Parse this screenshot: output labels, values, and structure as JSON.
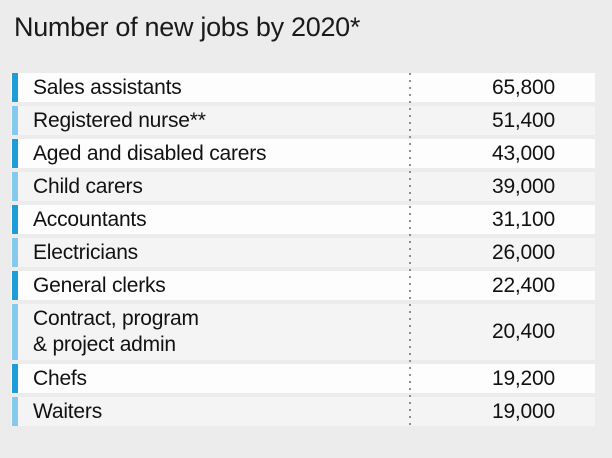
{
  "title": "Number of new jobs by 2020*",
  "colors": {
    "page_background": "#ececec",
    "row_white": "#fdfdfd",
    "row_gray": "#f4f4f4",
    "bar_dark": "#1e9dd8",
    "bar_light": "#85c9ec",
    "dotted_line": "#8f8f8f",
    "text": "#111111"
  },
  "rows": [
    {
      "label": "Sales assistants",
      "value": "65,800"
    },
    {
      "label": "Registered nurse**",
      "value": "51,400"
    },
    {
      "label": "Aged and disabled carers",
      "value": "43,000"
    },
    {
      "label": "Child carers",
      "value": "39,000"
    },
    {
      "label": "Accountants",
      "value": "31,100"
    },
    {
      "label": "Electricians",
      "value": "26,000"
    },
    {
      "label": "General clerks",
      "value": "22,400"
    },
    {
      "label": "Contract, program\n& project admin",
      "value": "20,400"
    },
    {
      "label": "Chefs",
      "value": "19,200"
    },
    {
      "label": "Waiters",
      "value": "19,000"
    }
  ],
  "chart_data": {
    "type": "table",
    "title": "Number of new jobs by 2020*",
    "categories": [
      "Sales assistants",
      "Registered nurse**",
      "Aged and disabled carers",
      "Child carers",
      "Accountants",
      "Electricians",
      "General clerks",
      "Contract, program & project admin",
      "Chefs",
      "Waiters"
    ],
    "values": [
      65800,
      51400,
      43000,
      39000,
      31100,
      26000,
      22400,
      20400,
      19200,
      19000
    ],
    "value_labels": [
      "65,800",
      "51,400",
      "43,000",
      "39,000",
      "31,100",
      "26,000",
      "22,400",
      "20,400",
      "19,200",
      "19,000"
    ],
    "legend_position": "none",
    "grid": false,
    "notes": "alternating dark/light blue row markers, dotted divider between label and value columns"
  }
}
